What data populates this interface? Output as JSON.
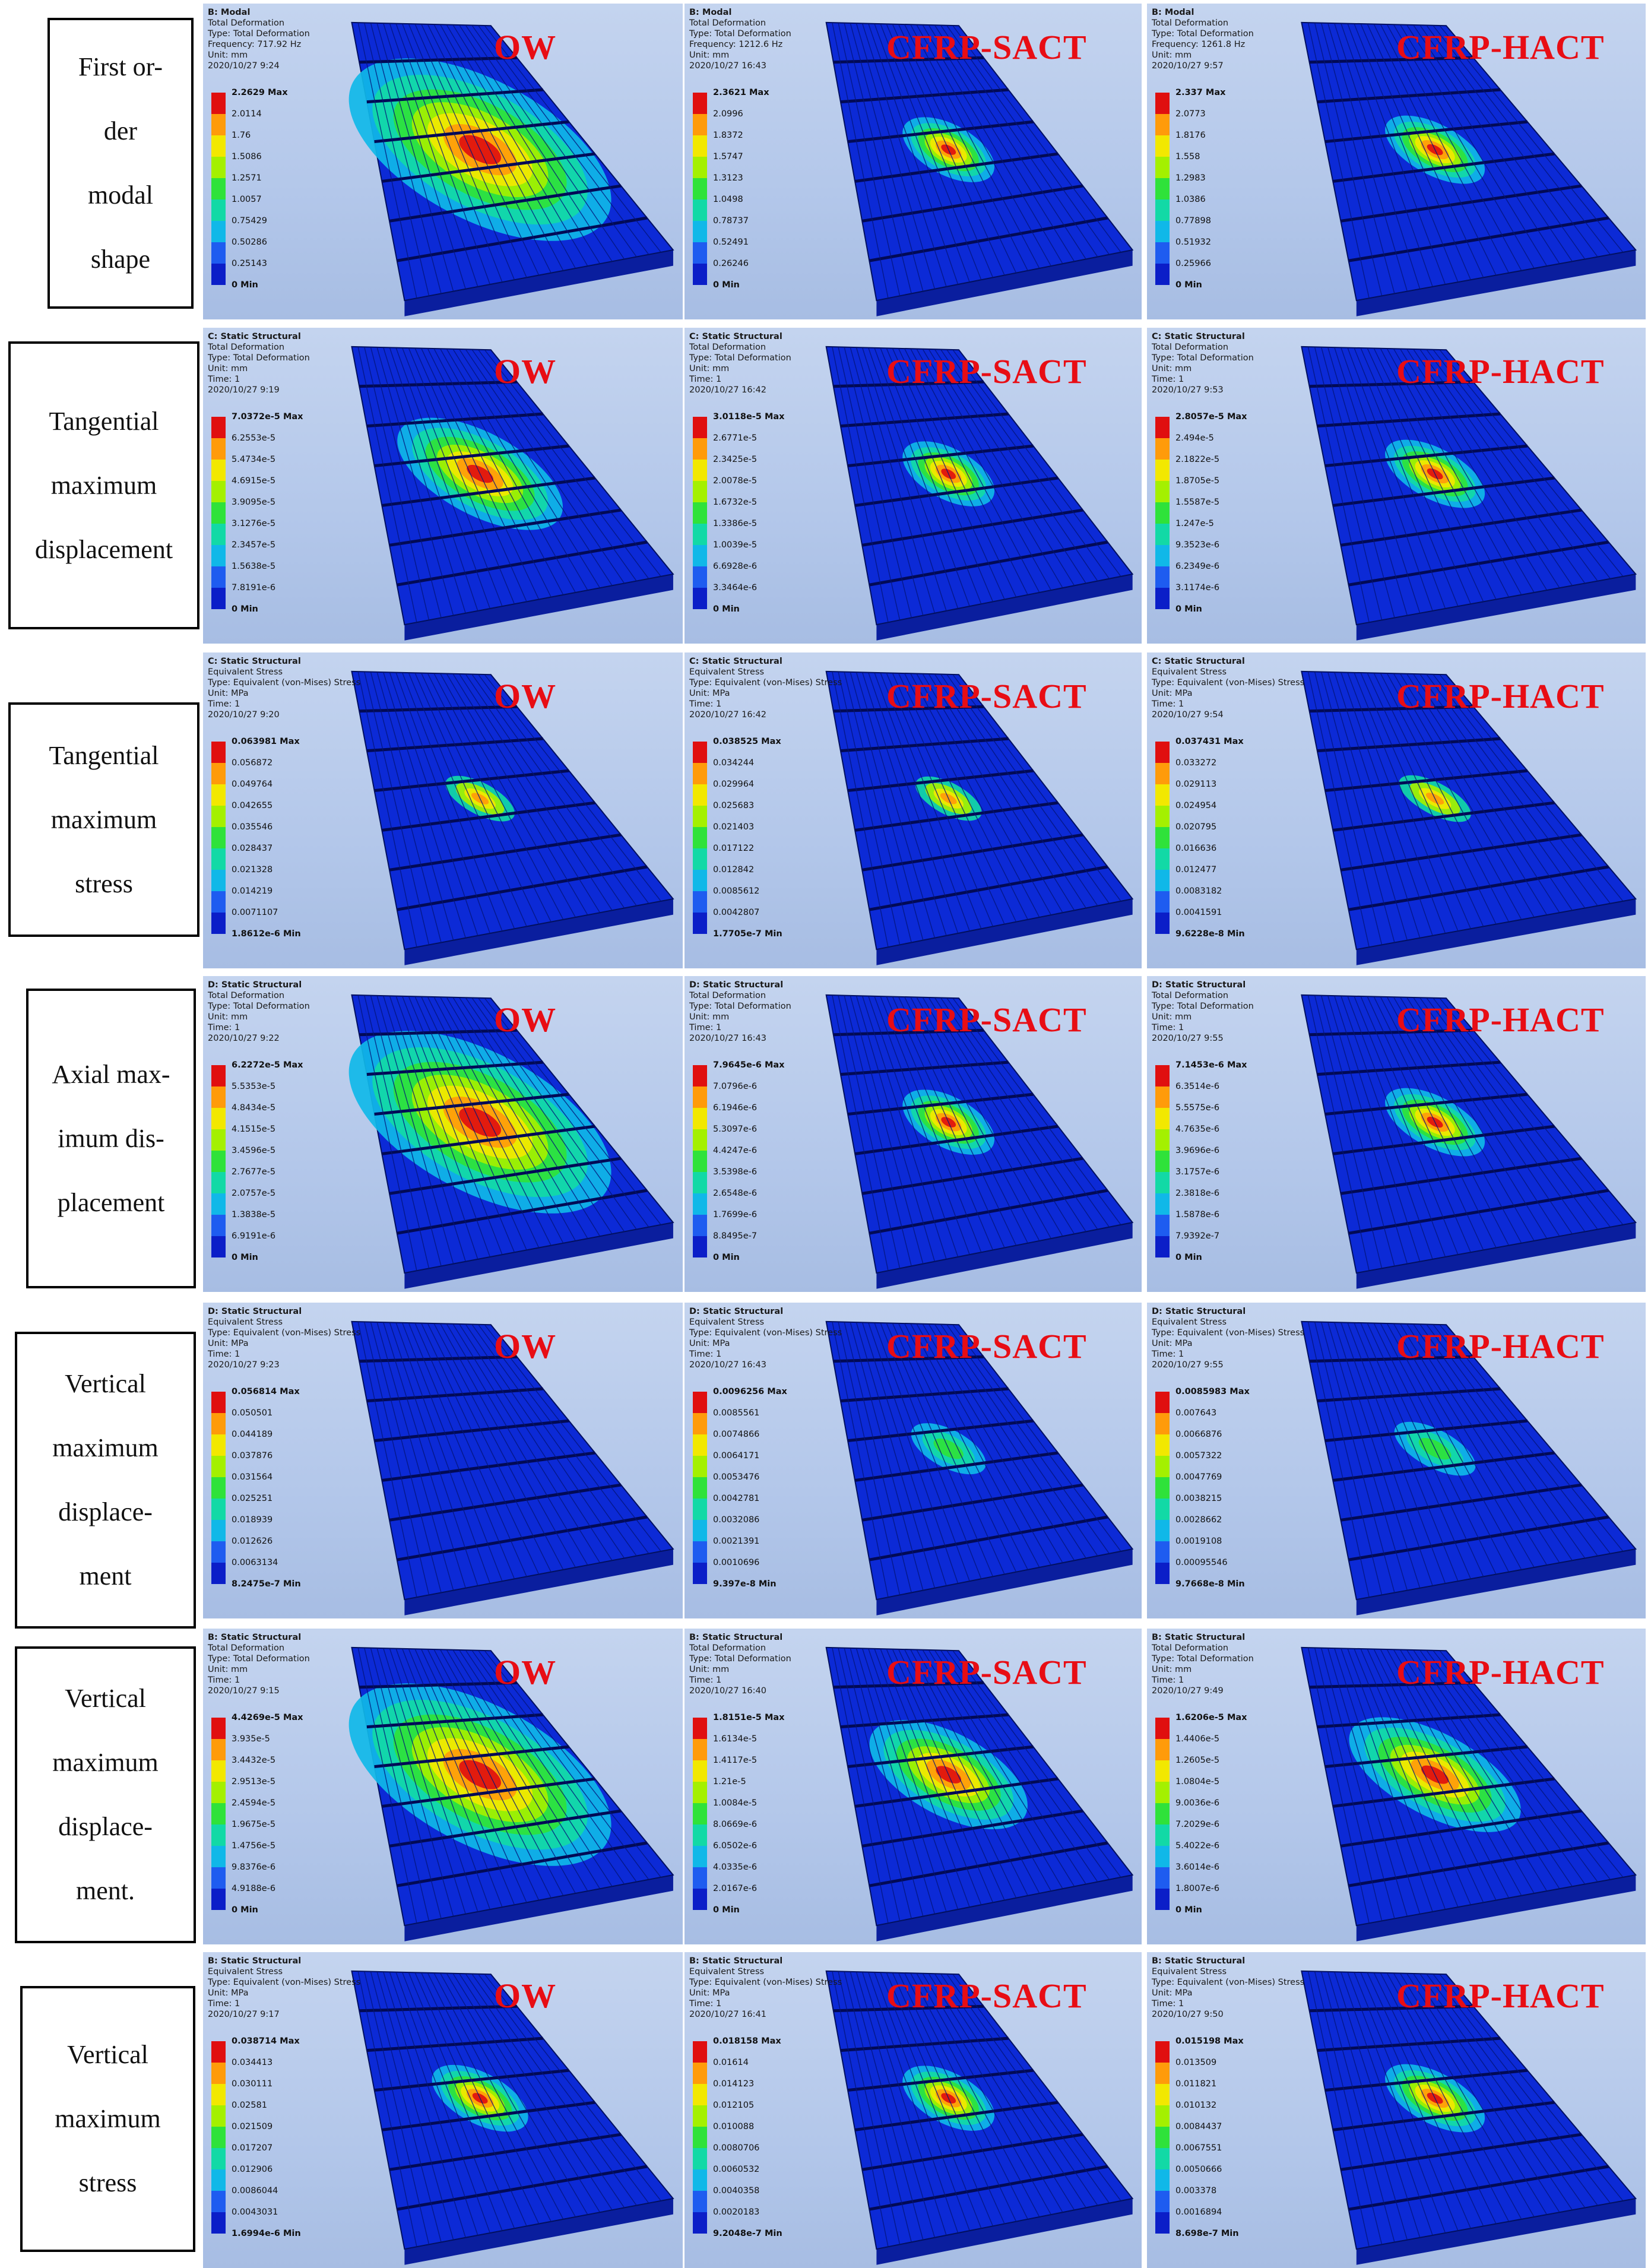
{
  "colors": {
    "legend": [
      "#e00f0f",
      "#ff9b0a",
      "#f2e800",
      "#a4f000",
      "#2fe23a",
      "#12d9a6",
      "#10b8e8",
      "#1e5cf0",
      "#0b1ec8"
    ],
    "title": "#e80d14",
    "mesh": "#0a24c8"
  },
  "rows": [
    {
      "label": [
        "First or-",
        "der",
        "modal",
        "shape"
      ],
      "panels": [
        {
          "title": "OW",
          "header": [
            "B: Modal",
            "Total Deformation",
            "Type: Total Deformation",
            "Frequency: 717.92 Hz",
            "Unit: mm",
            "2020/10/27 9:24"
          ],
          "legend": {
            "max": "2.2629 Max",
            "values": [
              "2.0114",
              "1.76",
              "1.5086",
              "1.2571",
              "1.0057",
              "0.75429",
              "0.50286",
              "0.25143"
            ],
            "min": "0 Min"
          },
          "spot": "large"
        },
        {
          "title": "CFRP-SACT",
          "header": [
            "B: Modal",
            "Total Deformation",
            "Type: Total Deformation",
            "Frequency: 1212.6 Hz",
            "Unit: mm",
            "2020/10/27 16:43"
          ],
          "legend": {
            "max": "2.3621 Max",
            "values": [
              "2.0996",
              "1.8372",
              "1.5747",
              "1.3123",
              "1.0498",
              "0.78737",
              "0.52491",
              "0.26246"
            ],
            "min": "0 Min"
          },
          "spot": "small"
        },
        {
          "title": "CFRP-HACT",
          "header": [
            "B: Modal",
            "Total Deformation",
            "Type: Total Deformation",
            "Frequency: 1261.8 Hz",
            "Unit: mm",
            "2020/10/27 9:57"
          ],
          "legend": {
            "max": "2.337 Max",
            "values": [
              "2.0773",
              "1.8176",
              "1.558",
              "1.2983",
              "1.0386",
              "0.77898",
              "0.51932",
              "0.25966"
            ],
            "min": "0 Min"
          },
          "spot": "small"
        }
      ]
    },
    {
      "label": [
        "Tangential",
        "maximum",
        "displacement"
      ],
      "panels": [
        {
          "title": "OW",
          "header": [
            "C: Static Structural",
            "Total Deformation",
            "Type: Total Deformation",
            "Unit: mm",
            "Time: 1",
            "2020/10/27 9:19"
          ],
          "legend": {
            "max": "7.0372e-5 Max",
            "values": [
              "6.2553e-5",
              "5.4734e-5",
              "4.6915e-5",
              "3.9095e-5",
              "3.1276e-5",
              "2.3457e-5",
              "1.5638e-5",
              "7.8191e-6"
            ],
            "min": "0 Min"
          },
          "spot": "medium"
        },
        {
          "title": "CFRP-SACT",
          "header": [
            "C: Static Structural",
            "Total Deformation",
            "Type: Total Deformation",
            "Unit: mm",
            "Time: 1",
            "2020/10/27 16:42"
          ],
          "legend": {
            "max": "3.0118e-5 Max",
            "values": [
              "2.6771e-5",
              "2.3425e-5",
              "2.0078e-5",
              "1.6732e-5",
              "1.3386e-5",
              "1.0039e-5",
              "6.6928e-6",
              "3.3464e-6"
            ],
            "min": "0 Min"
          },
          "spot": "small"
        },
        {
          "title": "CFRP-HACT",
          "header": [
            "C: Static Structural",
            "Total Deformation",
            "Type: Total Deformation",
            "Unit: mm",
            "Time: 1",
            "2020/10/27 9:53"
          ],
          "legend": {
            "max": "2.8057e-5 Max",
            "values": [
              "2.494e-5",
              "2.1822e-5",
              "1.8705e-5",
              "1.5587e-5",
              "1.247e-5",
              "9.3523e-6",
              "6.2349e-6",
              "3.1174e-6"
            ],
            "min": "0 Min"
          },
          "spot": "small"
        }
      ]
    },
    {
      "label": [
        "Tangential",
        "maximum",
        "stress"
      ],
      "panels": [
        {
          "title": "OW",
          "header": [
            "C: Static Structural",
            "Equivalent Stress",
            "Type: Equivalent (von-Mises) Stress",
            "Unit: MPa",
            "Time: 1",
            "2020/10/27 9:20"
          ],
          "legend": {
            "max": "0.063981 Max",
            "values": [
              "0.056872",
              "0.049764",
              "0.042655",
              "0.035546",
              "0.028437",
              "0.021328",
              "0.014219",
              "0.0071107"
            ],
            "min": "1.8612e-6 Min"
          },
          "spot": "tiny"
        },
        {
          "title": "CFRP-SACT",
          "header": [
            "C: Static Structural",
            "Equivalent Stress",
            "Type: Equivalent (von-Mises) Stress",
            "Unit: MPa",
            "Time: 1",
            "2020/10/27 16:42"
          ],
          "legend": {
            "max": "0.038525 Max",
            "values": [
              "0.034244",
              "0.029964",
              "0.025683",
              "0.021403",
              "0.017122",
              "0.012842",
              "0.0085612",
              "0.0042807"
            ],
            "min": "1.7705e-7 Min"
          },
          "spot": "tiny"
        },
        {
          "title": "CFRP-HACT",
          "header": [
            "C: Static Structural",
            "Equivalent Stress",
            "Type: Equivalent (von-Mises) Stress",
            "Unit: MPa",
            "Time: 1",
            "2020/10/27 9:54"
          ],
          "legend": {
            "max": "0.037431 Max",
            "values": [
              "0.033272",
              "0.029113",
              "0.024954",
              "0.020795",
              "0.016636",
              "0.012477",
              "0.0083182",
              "0.0041591"
            ],
            "min": "9.6228e-8 Min"
          },
          "spot": "tiny"
        }
      ]
    },
    {
      "label": [
        "Axial max-",
        "imum dis-",
        "placement"
      ],
      "panels": [
        {
          "title": "OW",
          "header": [
            "D: Static Structural",
            "Total Deformation",
            "Type: Total Deformation",
            "Unit: mm",
            "Time: 1",
            "2020/10/27 9:22"
          ],
          "legend": {
            "max": "6.2272e-5 Max",
            "values": [
              "5.5353e-5",
              "4.8434e-5",
              "4.1515e-5",
              "3.4596e-5",
              "2.7677e-5",
              "2.0757e-5",
              "1.3838e-5",
              "6.9191e-6"
            ],
            "min": "0 Min"
          },
          "spot": "large"
        },
        {
          "title": "CFRP-SACT",
          "header": [
            "D: Static Structural",
            "Total Deformation",
            "Type: Total Deformation",
            "Unit: mm",
            "Time: 1",
            "2020/10/27 16:43"
          ],
          "legend": {
            "max": "7.9645e-6 Max",
            "values": [
              "7.0796e-6",
              "6.1946e-6",
              "5.3097e-6",
              "4.4247e-6",
              "3.5398e-6",
              "2.6548e-6",
              "1.7699e-6",
              "8.8495e-7"
            ],
            "min": "0 Min"
          },
          "spot": "small"
        },
        {
          "title": "CFRP-HACT",
          "header": [
            "D: Static Structural",
            "Total Deformation",
            "Type: Total Deformation",
            "Unit: mm",
            "Time: 1",
            "2020/10/27 9:55"
          ],
          "legend": {
            "max": "7.1453e-6 Max",
            "values": [
              "6.3514e-6",
              "5.5575e-6",
              "4.7635e-6",
              "3.9696e-6",
              "3.1757e-6",
              "2.3818e-6",
              "1.5878e-6",
              "7.9392e-7"
            ],
            "min": "0 Min"
          },
          "spot": "small"
        }
      ]
    },
    {
      "label": [
        "Vertical",
        "maximum",
        "displace-",
        "ment"
      ],
      "panels": [
        {
          "title": "OW",
          "header": [
            "D: Static Structural",
            "Equivalent Stress",
            "Type: Equivalent (von-Mises) Stress",
            "Unit: MPa",
            "Time: 1",
            "2020/10/27 9:23"
          ],
          "legend": {
            "max": "0.056814 Max",
            "values": [
              "0.050501",
              "0.044189",
              "0.037876",
              "0.031564",
              "0.025251",
              "0.018939",
              "0.012626",
              "0.0063134"
            ],
            "min": "8.2475e-7 Min"
          },
          "spot": "none"
        },
        {
          "title": "CFRP-SACT",
          "header": [
            "D: Static Structural",
            "Equivalent Stress",
            "Type: Equivalent (von-Mises) Stress",
            "Unit: MPa",
            "Time: 1",
            "2020/10/27 16:43"
          ],
          "legend": {
            "max": "0.0096256 Max",
            "values": [
              "0.0085561",
              "0.0074866",
              "0.0064171",
              "0.0053476",
              "0.0042781",
              "0.0032086",
              "0.0021391",
              "0.0010696"
            ],
            "min": "9.397e-8 Min"
          },
          "spot": "faint"
        },
        {
          "title": "CFRP-HACT",
          "header": [
            "D: Static Structural",
            "Equivalent Stress",
            "Type: Equivalent (von-Mises) Stress",
            "Unit: MPa",
            "Time: 1",
            "2020/10/27 9:55"
          ],
          "legend": {
            "max": "0.0085983 Max",
            "values": [
              "0.007643",
              "0.0066876",
              "0.0057322",
              "0.0047769",
              "0.0038215",
              "0.0028662",
              "0.0019108",
              "0.00095546"
            ],
            "min": "9.7668e-8 Min"
          },
          "spot": "faint"
        }
      ]
    },
    {
      "label": [
        "Vertical",
        "maximum",
        "displace-",
        "ment."
      ],
      "panels": [
        {
          "title": "OW",
          "header": [
            "B: Static Structural",
            "Total Deformation",
            "Type: Total Deformation",
            "Unit: mm",
            "Time: 1",
            "2020/10/27 9:15"
          ],
          "legend": {
            "max": "4.4269e-5 Max",
            "values": [
              "3.935e-5",
              "3.4432e-5",
              "2.9513e-5",
              "2.4594e-5",
              "1.9675e-5",
              "1.4756e-5",
              "9.8376e-6",
              "4.9188e-6"
            ],
            "min": "0 Min"
          },
          "spot": "large"
        },
        {
          "title": "CFRP-SACT",
          "header": [
            "B: Static Structural",
            "Total Deformation",
            "Type: Total Deformation",
            "Unit: mm",
            "Time: 1",
            "2020/10/27 16:40"
          ],
          "legend": {
            "max": "1.8151e-5 Max",
            "values": [
              "1.6134e-5",
              "1.4117e-5",
              "1.21e-5",
              "1.0084e-5",
              "8.0669e-6",
              "6.0502e-6",
              "4.0335e-6",
              "2.0167e-6"
            ],
            "min": "0 Min"
          },
          "spot": "medium"
        },
        {
          "title": "CFRP-HACT",
          "header": [
            "B: Static Structural",
            "Total Deformation",
            "Type: Total Deformation",
            "Unit: mm",
            "Time: 1",
            "2020/10/27 9:49"
          ],
          "legend": {
            "max": "1.6206e-5 Max",
            "values": [
              "1.4406e-5",
              "1.2605e-5",
              "1.0804e-5",
              "9.0036e-6",
              "7.2029e-6",
              "5.4022e-6",
              "3.6014e-6",
              "1.8007e-6"
            ],
            "min": "0 Min"
          },
          "spot": "medium"
        }
      ]
    },
    {
      "label": [
        "Vertical",
        "maximum",
        "stress"
      ],
      "panels": [
        {
          "title": "OW",
          "header": [
            "B: Static Structural",
            "Equivalent Stress",
            "Type: Equivalent (von-Mises) Stress",
            "Unit: MPa",
            "Time: 1",
            "2020/10/27 9:17"
          ],
          "legend": {
            "max": "0.038714 Max",
            "values": [
              "0.034413",
              "0.030111",
              "0.02581",
              "0.021509",
              "0.017207",
              "0.012906",
              "0.0086044",
              "0.0043031"
            ],
            "min": "1.6994e-6 Min"
          },
          "spot": "small"
        },
        {
          "title": "CFRP-SACT",
          "header": [
            "B: Static Structural",
            "Equivalent Stress",
            "Type: Equivalent (von-Mises) Stress",
            "Unit: MPa",
            "Time: 1",
            "2020/10/27 16:41"
          ],
          "legend": {
            "max": "0.018158 Max",
            "values": [
              "0.01614",
              "0.014123",
              "0.012105",
              "0.010088",
              "0.0080706",
              "0.0060532",
              "0.0040358",
              "0.0020183"
            ],
            "min": "9.2048e-7 Min"
          },
          "spot": "small"
        },
        {
          "title": "CFRP-HACT",
          "header": [
            "B: Static Structural",
            "Equivalent Stress",
            "Type: Equivalent (von-Mises) Stress",
            "Unit: MPa",
            "Time: 1",
            "2020/10/27 9:50"
          ],
          "legend": {
            "max": "0.015198 Max",
            "values": [
              "0.013509",
              "0.011821",
              "0.010132",
              "0.0084437",
              "0.0067551",
              "0.0050666",
              "0.003378",
              "0.0016894"
            ],
            "min": "8.698e-7 Min"
          },
          "spot": "small"
        }
      ]
    }
  ]
}
